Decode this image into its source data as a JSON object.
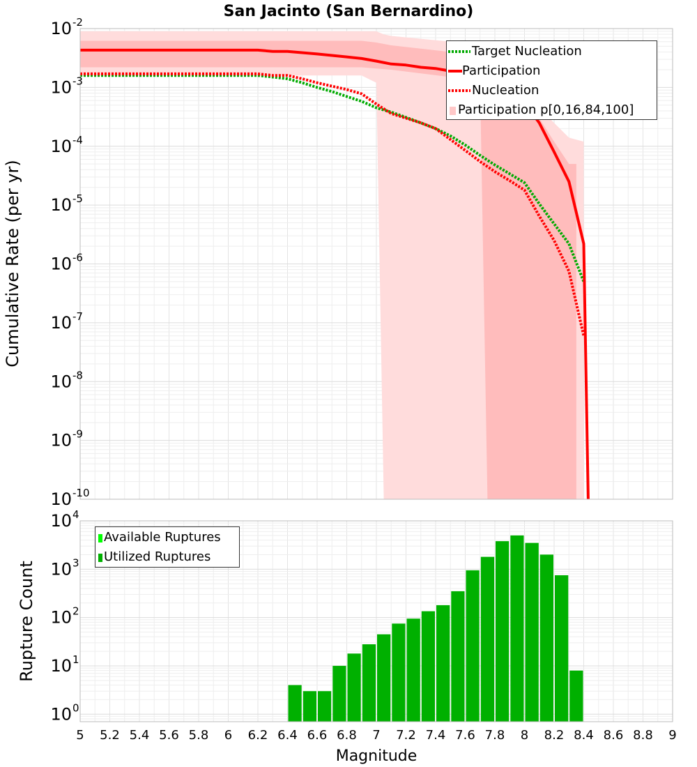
{
  "title": "San Jacinto (San Bernardino)",
  "colors": {
    "participation": "#ff0000",
    "nucleation": "#ff0000",
    "target_nucleation": "#00aa00",
    "band_outer": "#ffdcdc",
    "band_inner": "#ffbcbc",
    "bar_utilized": "#00b000",
    "bar_available": "#00ff00"
  },
  "chart_data": [
    {
      "type": "line",
      "title": "San Jacinto (San Bernardino)",
      "ylabel": "Cumulative Rate (per yr)",
      "xlim": [
        5,
        9
      ],
      "ylim": [
        1e-10,
        0.01
      ],
      "yscale": "log",
      "ytick_labels": [
        {
          "base": "10",
          "exp": "-10"
        },
        {
          "base": "10",
          "exp": "-9"
        },
        {
          "base": "10",
          "exp": "-8"
        },
        {
          "base": "10",
          "exp": "-7"
        },
        {
          "base": "10",
          "exp": "-6"
        },
        {
          "base": "10",
          "exp": "-5"
        },
        {
          "base": "10",
          "exp": "-4"
        },
        {
          "base": "10",
          "exp": "-3"
        },
        {
          "base": "10",
          "exp": "-2"
        }
      ],
      "grid": true,
      "legend": "top-right",
      "series": [
        {
          "name": "Target Nucleation",
          "style": "dotted",
          "color": "#00aa00",
          "x": [
            5.0,
            6.2,
            6.3,
            6.4,
            6.5,
            6.6,
            6.7,
            6.8,
            6.9,
            7.0,
            7.1,
            7.2,
            7.3,
            7.4,
            7.5,
            7.6,
            7.7,
            7.8,
            7.9,
            8.0,
            8.1,
            8.2,
            8.3,
            8.4
          ],
          "y": [
            0.0016,
            0.0016,
            0.0015,
            0.0014,
            0.0012,
            0.001,
            0.00085,
            0.0007,
            0.00058,
            0.00045,
            0.00038,
            0.00031,
            0.00025,
            0.0002,
            0.00015,
            0.000105,
            7e-05,
            4.8e-05,
            3.4e-05,
            2.4e-05,
            1.05e-05,
            4.8e-06,
            2.2e-06,
            5e-07
          ]
        },
        {
          "name": "Participation",
          "style": "solid",
          "color": "#ff0000",
          "x": [
            5.0,
            6.2,
            6.3,
            6.4,
            6.6,
            6.7,
            6.8,
            6.9,
            7.0,
            7.1,
            7.2,
            7.3,
            7.4,
            7.5,
            7.6,
            7.7,
            7.8,
            7.9,
            8.0,
            8.1,
            8.2,
            8.3,
            8.4,
            8.43
          ],
          "y": [
            0.0043,
            0.0043,
            0.0041,
            0.0041,
            0.0037,
            0.0035,
            0.0033,
            0.0031,
            0.0028,
            0.0025,
            0.0024,
            0.0022,
            0.0021,
            0.0019,
            0.0017,
            0.0014,
            0.0011,
            0.0008,
            0.00055,
            0.00025,
            8e-05,
            2.5e-05,
            2.2e-06,
            1e-10
          ]
        },
        {
          "name": "Nucleation",
          "style": "dotted",
          "color": "#ff0000",
          "x": [
            5.0,
            6.2,
            6.3,
            6.4,
            6.5,
            6.6,
            6.7,
            6.8,
            6.9,
            7.0,
            7.1,
            7.2,
            7.3,
            7.4,
            7.5,
            7.6,
            7.7,
            7.8,
            7.9,
            8.0,
            8.1,
            8.2,
            8.3,
            8.4
          ],
          "y": [
            0.0017,
            0.0017,
            0.0016,
            0.0016,
            0.0014,
            0.0012,
            0.00105,
            0.00092,
            0.00078,
            0.00052,
            0.00036,
            0.0003,
            0.00025,
            0.0002,
            0.00013,
            8.5e-05,
            5.5e-05,
            3.7e-05,
            2.6e-05,
            1.8e-05,
            6.5e-06,
            2.5e-06,
            7.5e-07,
            6e-08
          ]
        }
      ],
      "bands": [
        {
          "name": "Participation p[0,16,84,100]",
          "level": "outer",
          "x": [
            5.0,
            6.9,
            7.0,
            7.05,
            7.1,
            7.5,
            7.7,
            7.8,
            7.9,
            8.0,
            8.1,
            8.2,
            8.3,
            8.4
          ],
          "low": [
            0.0016,
            0.0016,
            0.0012,
            1e-10,
            1e-10,
            1e-10,
            1e-10,
            1e-10,
            1e-10,
            1e-10,
            1e-10,
            1e-10,
            1e-10,
            1e-10
          ],
          "high": [
            0.009,
            0.009,
            0.009,
            0.008,
            0.0075,
            0.006,
            0.0045,
            0.0035,
            0.0022,
            0.0013,
            0.00045,
            0.00025,
            0.00014,
            0.00012
          ]
        },
        {
          "name": "Participation inner",
          "level": "inner",
          "x": [
            5.0,
            6.9,
            7.0,
            7.1,
            7.5,
            7.7,
            7.75,
            7.8,
            7.9,
            8.0,
            8.1,
            8.2,
            8.3,
            8.35
          ],
          "low": [
            0.0022,
            0.0022,
            0.0021,
            0.002,
            0.0015,
            0.0011,
            1e-10,
            1e-10,
            1e-10,
            1e-10,
            1e-10,
            1e-10,
            1e-10,
            1e-10
          ],
          "high": [
            0.0062,
            0.0062,
            0.0058,
            0.0052,
            0.004,
            0.0032,
            0.0029,
            0.0026,
            0.0018,
            0.0011,
            0.0003,
            0.00012,
            5e-05,
            5e-05
          ]
        }
      ],
      "legend_entries": [
        "Target Nucleation",
        "Participation",
        "Nucleation",
        "Participation p[0,16,84,100]"
      ]
    },
    {
      "type": "bar",
      "xlabel": "Magnitude",
      "ylabel": "Rupture Count",
      "xlim": [
        5,
        9
      ],
      "ylim": [
        0.7,
        10000
      ],
      "yscale": "log",
      "xticks": [
        "5",
        "5.2",
        "5.4",
        "5.6",
        "5.8",
        "6",
        "6.2",
        "6.4",
        "6.6",
        "6.8",
        "7",
        "7.2",
        "7.4",
        "7.6",
        "7.8",
        "8",
        "8.2",
        "8.4",
        "8.6",
        "8.8",
        "9"
      ],
      "ytick_labels": [
        {
          "base": "10",
          "exp": "0"
        },
        {
          "base": "10",
          "exp": "1"
        },
        {
          "base": "10",
          "exp": "2"
        },
        {
          "base": "10",
          "exp": "3"
        },
        {
          "base": "10",
          "exp": "4"
        }
      ],
      "grid": true,
      "legend": "top-left",
      "bin_width": 0.1,
      "series": [
        {
          "name": "Available Ruptures",
          "color": "#00ff00",
          "x": [
            6.45,
            6.55,
            6.65,
            6.75,
            6.85,
            6.95,
            7.05,
            7.15,
            7.25,
            7.35,
            7.45,
            7.55,
            7.65,
            7.75,
            7.85,
            7.95,
            8.05,
            8.15,
            8.25,
            8.35
          ],
          "values": [
            4,
            3,
            3,
            10,
            18,
            28,
            45,
            75,
            95,
            135,
            180,
            350,
            950,
            1800,
            3800,
            5000,
            3500,
            2000,
            750,
            8
          ]
        },
        {
          "name": "Utilized Ruptures",
          "color": "#00b000",
          "x": [
            6.45,
            6.55,
            6.65,
            6.75,
            6.85,
            6.95,
            7.05,
            7.15,
            7.25,
            7.35,
            7.45,
            7.55,
            7.65,
            7.75,
            7.85,
            7.95,
            8.05,
            8.15,
            8.25,
            8.35
          ],
          "values": [
            4,
            3,
            3,
            10,
            18,
            28,
            45,
            75,
            95,
            135,
            180,
            350,
            950,
            1800,
            3800,
            5000,
            3500,
            2000,
            750,
            8
          ]
        }
      ],
      "legend_entries": [
        "Available Ruptures",
        "Utilized Ruptures"
      ]
    }
  ]
}
